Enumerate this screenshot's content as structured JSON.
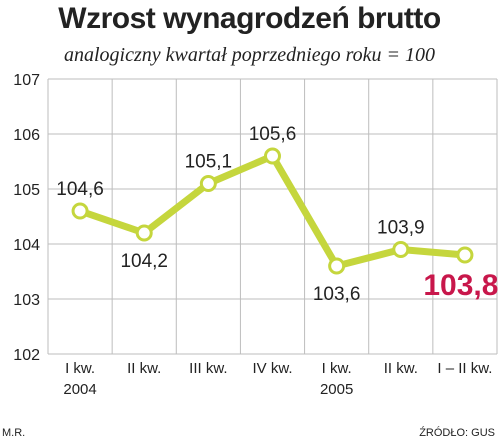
{
  "chart_data": {
    "type": "line",
    "title": "Wzrost wynagrodzeń brutto",
    "subtitle": "analogiczny kwartał poprzedniego roku = 100",
    "categories": [
      "I kw.",
      "II kw.",
      "III kw.",
      "IV kw.",
      "I kw.",
      "II kw.",
      "I – II kw."
    ],
    "year_labels": [
      "2004",
      "",
      "",
      "",
      "2005",
      "",
      ""
    ],
    "values": [
      104.6,
      104.2,
      105.1,
      105.6,
      103.6,
      103.9,
      103.8
    ],
    "data_labels": [
      "104,6",
      "104,2",
      "105,1",
      "105,6",
      "103,6",
      "103,9",
      "103,8"
    ],
    "y_ticks": [
      "102",
      "103",
      "104",
      "105",
      "106",
      "107"
    ],
    "ylim": [
      102,
      107
    ],
    "grid": true,
    "highlight_index": 6,
    "colors": {
      "line": "#c5d63d",
      "highlight": "#c8174b",
      "grid": "#bdbdbd"
    }
  },
  "footer": {
    "author": "M.R.",
    "source": "ŹRÓDŁO: GUS"
  }
}
